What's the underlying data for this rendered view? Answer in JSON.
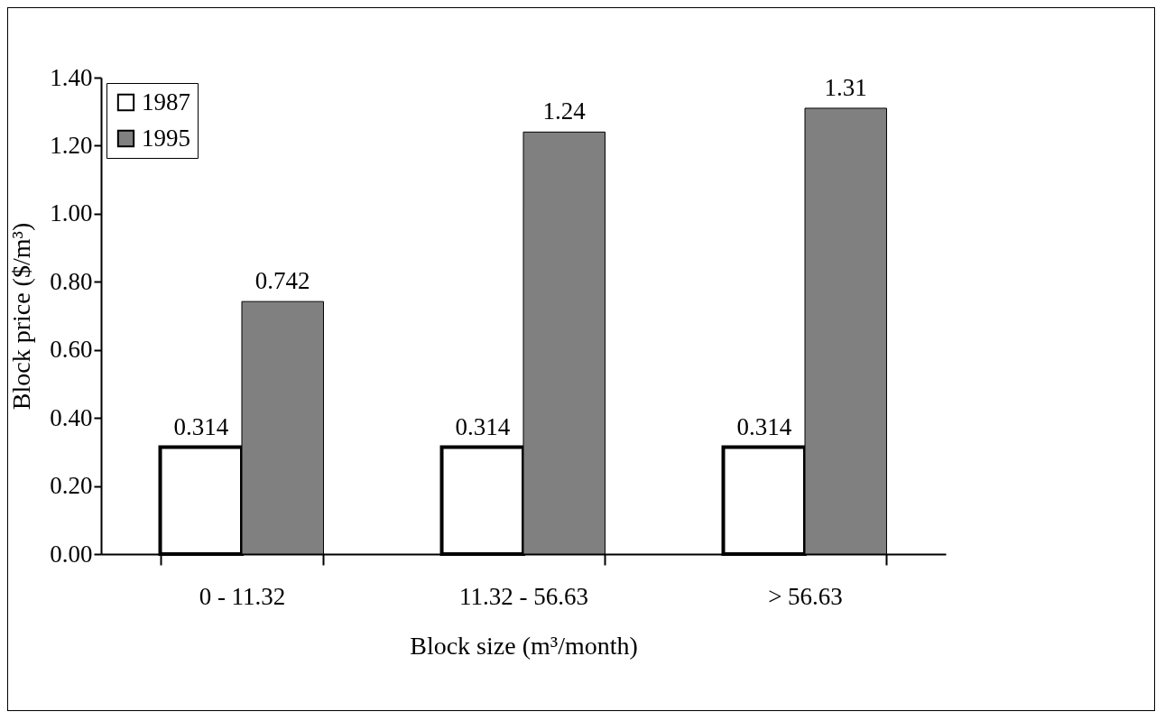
{
  "chart_data": {
    "type": "bar",
    "xlabel": "Block size (m³/month)",
    "ylabel": "Block price ($/m³)",
    "categories": [
      "0 - 11.32",
      "11.32 - 56.63",
      "> 56.63"
    ],
    "series": [
      {
        "name": "1987",
        "color": "#ffffff",
        "values": [
          0.314,
          0.314,
          0.314
        ]
      },
      {
        "name": "1995",
        "color": "#808080",
        "values": [
          0.742,
          1.24,
          1.31
        ]
      }
    ],
    "ylim": [
      0,
      1.4
    ],
    "yticks": [
      {
        "value": 0,
        "label": "0.00"
      },
      {
        "value": 0.2,
        "label": "0.20"
      },
      {
        "value": 0.4,
        "label": "0.40"
      },
      {
        "value": 0.6,
        "label": "0.60"
      },
      {
        "value": 0.8,
        "label": "0.80"
      },
      {
        "value": 1,
        "label": "1.00"
      },
      {
        "value": 1.2,
        "label": "1.20"
      },
      {
        "value": 1.4,
        "label": "1.40"
      }
    ],
    "grid": false,
    "legend": "top left",
    "data_labels": true
  }
}
